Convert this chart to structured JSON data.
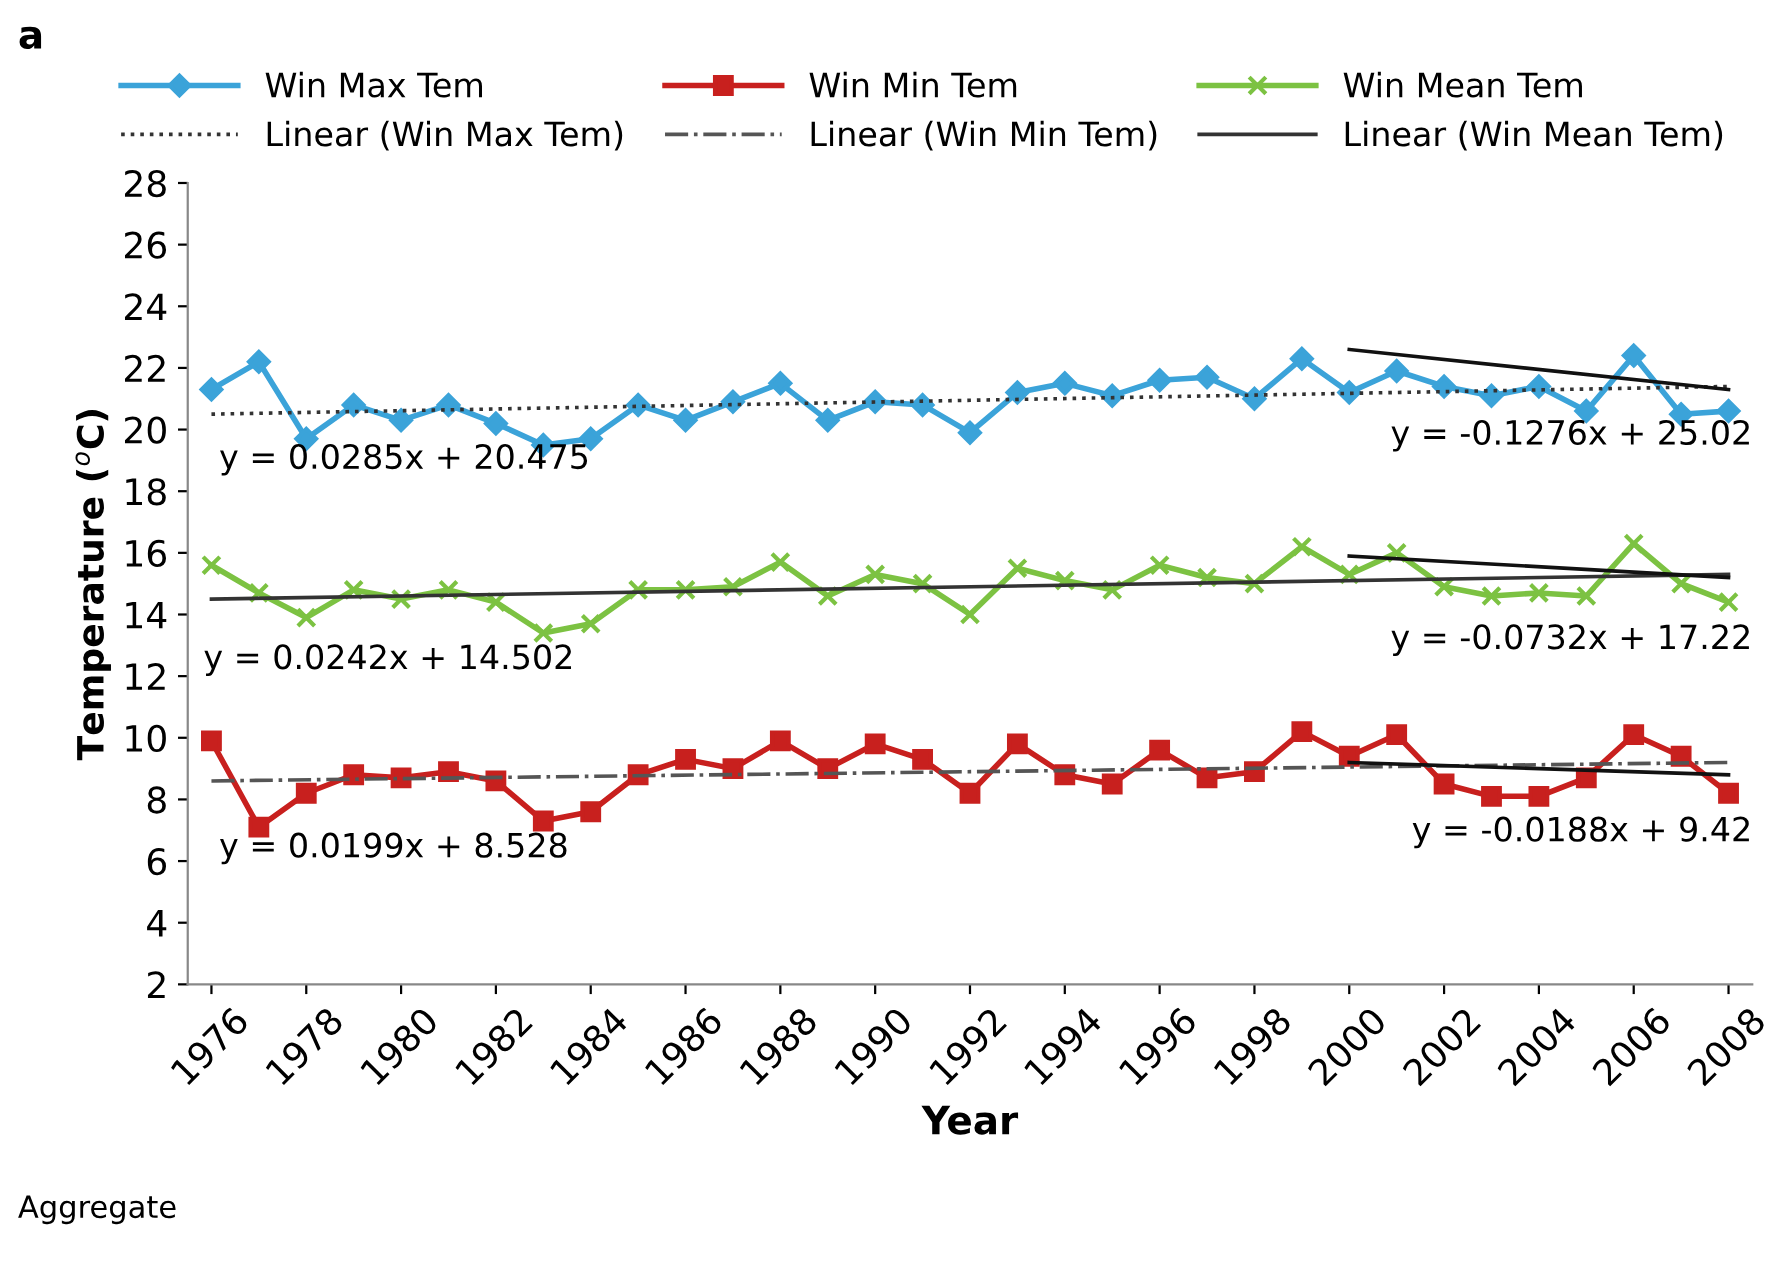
{
  "chart_data": {
    "type": "line",
    "title": "a",
    "xlabel": "Year",
    "ylabel": "Temperature ($^{o}$C)",
    "x": [
      1976,
      1977,
      1978,
      1979,
      1980,
      1981,
      1982,
      1983,
      1984,
      1985,
      1986,
      1987,
      1988,
      1989,
      1990,
      1991,
      1992,
      1993,
      1994,
      1995,
      1996,
      1997,
      1998,
      1999,
      2000,
      2001,
      2002,
      2003,
      2004,
      2005,
      2006,
      2007,
      2008
    ],
    "xlim": [
      1975.5,
      2008.5
    ],
    "xticks": [
      1976,
      1978,
      1980,
      1982,
      1984,
      1986,
      1988,
      1990,
      1992,
      1994,
      1996,
      1998,
      2000,
      2002,
      2004,
      2006,
      2008
    ],
    "ylim": [
      2,
      28
    ],
    "yticks": [
      2,
      4,
      6,
      8,
      10,
      12,
      14,
      16,
      18,
      20,
      22,
      24,
      26,
      28
    ],
    "grid": false,
    "legend": "top",
    "series": [
      {
        "name": "Win Max Tem",
        "color": "#3ba3d9",
        "marker": "diamond",
        "line_style": "solid",
        "values": [
          21.3,
          22.2,
          19.7,
          20.8,
          20.3,
          20.8,
          20.2,
          19.5,
          19.7,
          20.8,
          20.3,
          20.9,
          21.5,
          20.3,
          20.9,
          20.8,
          19.9,
          21.2,
          21.5,
          21.1,
          21.6,
          21.7,
          21.0,
          22.3,
          21.2,
          21.9,
          21.4,
          21.1,
          21.4,
          20.6,
          22.4,
          20.5,
          20.6
        ]
      },
      {
        "name": "Win Min Tem",
        "color": "#c8201e",
        "marker": "square",
        "line_style": "solid",
        "values": [
          9.9,
          7.1,
          8.2,
          8.8,
          8.7,
          8.9,
          8.6,
          7.3,
          7.6,
          8.8,
          9.3,
          9.0,
          9.9,
          9.0,
          9.8,
          9.3,
          8.2,
          9.8,
          8.8,
          8.5,
          9.6,
          8.7,
          8.9,
          10.2,
          9.4,
          10.1,
          8.5,
          8.1,
          8.1,
          8.7,
          10.1,
          9.4,
          8.2
        ]
      },
      {
        "name": "Win Mean Tem",
        "color": "#7cc242",
        "marker": "cross",
        "line_style": "solid",
        "values": [
          15.6,
          14.7,
          13.9,
          14.8,
          14.5,
          14.8,
          14.4,
          13.4,
          13.7,
          14.8,
          14.8,
          14.9,
          15.7,
          14.6,
          15.3,
          15.0,
          14.0,
          15.5,
          15.1,
          14.8,
          15.6,
          15.2,
          15.0,
          16.2,
          15.3,
          16.0,
          14.9,
          14.6,
          14.7,
          14.6,
          16.3,
          15.0,
          14.4
        ]
      },
      {
        "name": "Linear (Win Max Tem)",
        "color": "#333333",
        "marker": "none",
        "line_style": "dotted",
        "x": [
          1976,
          2008
        ],
        "values": [
          20.5,
          21.4
        ]
      },
      {
        "name": "Linear (Win Min Tem)",
        "color": "#555555",
        "marker": "none",
        "line_style": "dashdot",
        "x": [
          1976,
          2008
        ],
        "values": [
          8.6,
          9.2
        ]
      },
      {
        "name": "Linear (Win Mean Tem)",
        "color": "#333333",
        "marker": "none",
        "line_style": "solid",
        "x": [
          1976,
          2008
        ],
        "values": [
          14.5,
          15.3
        ]
      },
      {
        "color": "#111111",
        "marker": "none",
        "line_style": "solid",
        "x": [
          2000,
          2008
        ],
        "values": [
          22.6,
          21.3
        ]
      },
      {
        "color": "#111111",
        "marker": "none",
        "line_style": "solid",
        "x": [
          2000,
          2008
        ],
        "values": [
          15.9,
          15.2
        ]
      },
      {
        "color": "#111111",
        "marker": "none",
        "line_style": "solid",
        "x": [
          2000,
          2008
        ],
        "values": [
          9.2,
          8.8
        ]
      }
    ],
    "annotations": [
      "y = 0.0285x + 20.475",
      "y = 0.0242x + 14.502",
      "y = 0.0199x + 8.528",
      "y = -0.1276x + 25.02",
      "y = -0.0732x + 17.22",
      "y = -0.0188x + 9.42",
      "Aggregate"
    ]
  }
}
